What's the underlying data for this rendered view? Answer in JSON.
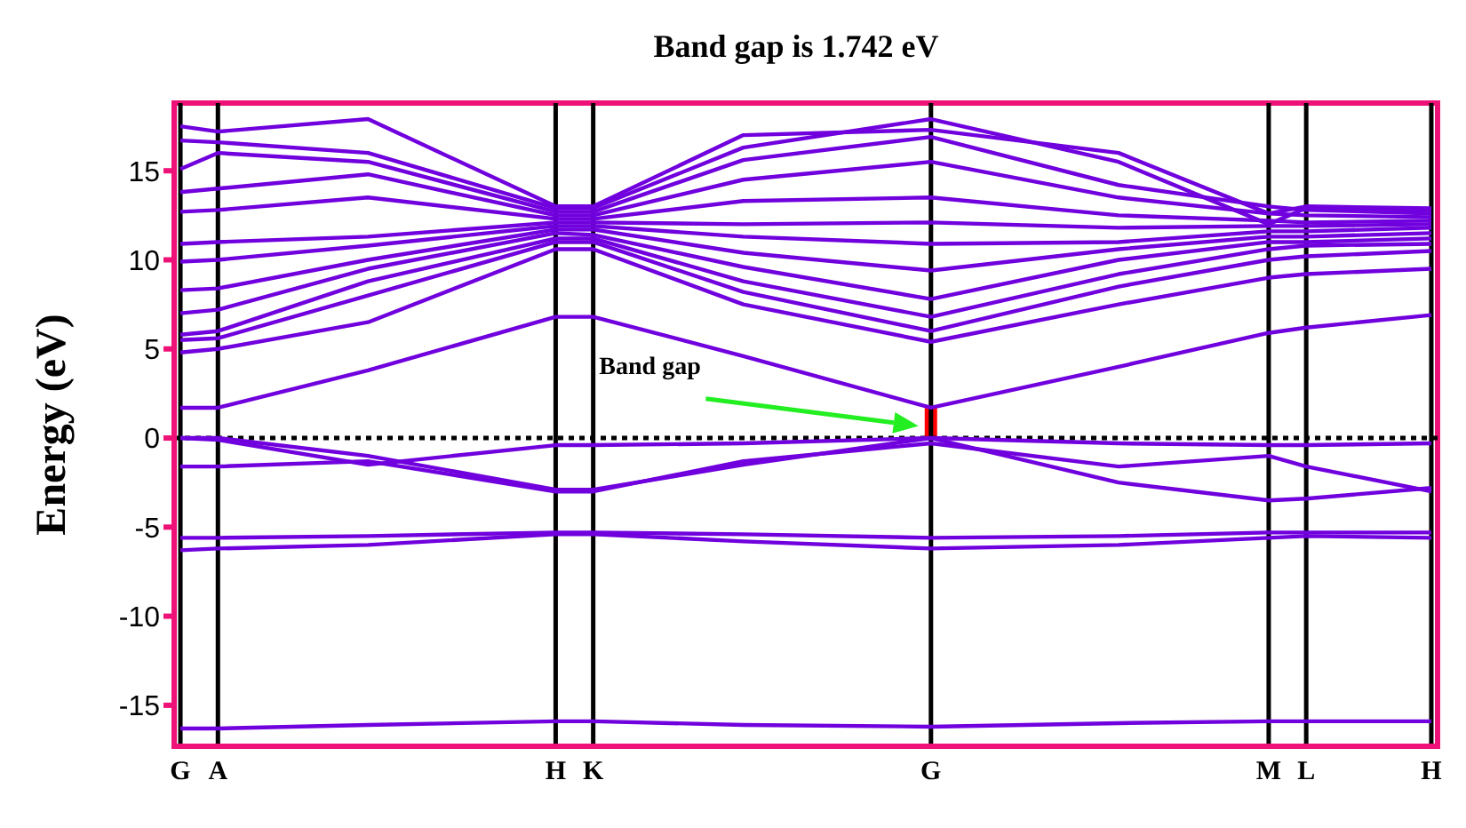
{
  "chart_data": {
    "type": "line",
    "title": "Band gap is 1.742 eV",
    "ylabel": "Energy (eV)",
    "categories": [
      "G",
      null,
      null,
      "A",
      null,
      null,
      null,
      null,
      null,
      null,
      null,
      null,
      null,
      null,
      null,
      null,
      null,
      null,
      null,
      null,
      null,
      null,
      null,
      null,
      null,
      null,
      null,
      null,
      null,
      null,
      "H",
      null,
      null,
      "K",
      null,
      null,
      null,
      null,
      null,
      null,
      null,
      null,
      null,
      null,
      null,
      null,
      null,
      null,
      null,
      null,
      null,
      null,
      null,
      null,
      null,
      null,
      null,
      null,
      null,
      null,
      "G",
      null,
      null,
      null,
      null,
      null,
      null,
      null,
      null,
      null,
      null,
      null,
      null,
      null,
      null,
      null,
      null,
      null,
      null,
      null,
      null,
      null,
      null,
      null,
      null,
      null,
      null,
      "M",
      null,
      null,
      "L",
      null,
      null,
      null,
      null,
      null,
      null,
      null,
      null,
      null,
      "H"
    ],
    "ylim": [
      -17.3,
      18.8
    ],
    "yticks": [
      -15,
      -10,
      -5,
      0,
      5,
      10,
      15
    ],
    "marker": "none",
    "line_style": "solid",
    "grid": "x",
    "series": [
      {
        "color": "#7000dd",
        "values": [
          -16.3,
          null,
          null,
          -16.3,
          null,
          null,
          null,
          null,
          null,
          null,
          null,
          null,
          null,
          null,
          null,
          -16.1,
          null,
          null,
          null,
          null,
          null,
          null,
          null,
          null,
          null,
          null,
          null,
          null,
          null,
          null,
          -15.9,
          null,
          null,
          -15.9,
          null,
          null,
          null,
          null,
          null,
          null,
          null,
          null,
          null,
          null,
          null,
          -16.1,
          null,
          null,
          null,
          null,
          null,
          null,
          null,
          null,
          null,
          null,
          null,
          null,
          null,
          null,
          -16.2,
          null,
          null,
          null,
          null,
          null,
          null,
          null,
          null,
          null,
          null,
          null,
          null,
          null,
          null,
          -16.0,
          null,
          null,
          null,
          null,
          null,
          null,
          null,
          null,
          null,
          null,
          null,
          -15.9,
          null,
          null,
          -15.9,
          null,
          null,
          null,
          null,
          null,
          null,
          null,
          null,
          null,
          -15.9
        ]
      },
      {
        "color": "#7000dd",
        "values": [
          -6.3,
          null,
          null,
          -6.2,
          null,
          null,
          null,
          null,
          null,
          null,
          null,
          null,
          null,
          null,
          null,
          -6.0,
          null,
          null,
          null,
          null,
          null,
          null,
          null,
          null,
          null,
          null,
          null,
          null,
          null,
          null,
          -5.4,
          null,
          null,
          -5.4,
          null,
          null,
          null,
          null,
          null,
          null,
          null,
          null,
          null,
          null,
          null,
          -5.8,
          null,
          null,
          null,
          null,
          null,
          null,
          null,
          null,
          null,
          null,
          null,
          null,
          null,
          null,
          -6.2,
          null,
          null,
          null,
          null,
          null,
          null,
          null,
          null,
          null,
          null,
          null,
          null,
          null,
          null,
          -6.0,
          null,
          null,
          null,
          null,
          null,
          null,
          null,
          null,
          null,
          null,
          null,
          -5.6,
          null,
          null,
          -5.5,
          null,
          null,
          null,
          null,
          null,
          null,
          null,
          null,
          null,
          -5.6
        ]
      },
      {
        "color": "#7000dd",
        "values": [
          -5.6,
          null,
          null,
          -5.6,
          null,
          null,
          null,
          null,
          null,
          null,
          null,
          null,
          null,
          null,
          null,
          -5.5,
          null,
          null,
          null,
          null,
          null,
          null,
          null,
          null,
          null,
          null,
          null,
          null,
          null,
          null,
          -5.3,
          null,
          null,
          -5.3,
          null,
          null,
          null,
          null,
          null,
          null,
          null,
          null,
          null,
          null,
          null,
          -5.4,
          null,
          null,
          null,
          null,
          null,
          null,
          null,
          null,
          null,
          null,
          null,
          null,
          null,
          null,
          -5.6,
          null,
          null,
          null,
          null,
          null,
          null,
          null,
          null,
          null,
          null,
          null,
          null,
          null,
          null,
          -5.5,
          null,
          null,
          null,
          null,
          null,
          null,
          null,
          null,
          null,
          null,
          null,
          -5.3,
          null,
          null,
          -5.3,
          null,
          null,
          null,
          null,
          null,
          null,
          null,
          null,
          null,
          -5.3
        ]
      },
      {
        "color": "#7000dd",
        "values": [
          -1.6,
          null,
          null,
          -1.6,
          null,
          null,
          null,
          null,
          null,
          null,
          null,
          null,
          null,
          null,
          null,
          -1.3,
          null,
          null,
          null,
          null,
          null,
          null,
          null,
          null,
          null,
          null,
          null,
          null,
          null,
          null,
          -3.0,
          null,
          null,
          -3.0,
          null,
          null,
          null,
          null,
          null,
          null,
          null,
          null,
          null,
          null,
          null,
          -1.3,
          null,
          null,
          null,
          null,
          null,
          null,
          null,
          null,
          null,
          null,
          null,
          null,
          null,
          null,
          -0.3,
          null,
          null,
          null,
          null,
          null,
          null,
          null,
          null,
          null,
          null,
          null,
          null,
          null,
          null,
          -1.6,
          null,
          null,
          null,
          null,
          null,
          null,
          null,
          null,
          null,
          null,
          null,
          -1.0,
          null,
          null,
          -1.6,
          null,
          null,
          null,
          null,
          null,
          null,
          null,
          null,
          null,
          -3.0
        ]
      },
      {
        "color": "#7000dd",
        "values": [
          0,
          null,
          null,
          -0.1,
          null,
          null,
          null,
          null,
          null,
          null,
          null,
          null,
          null,
          null,
          null,
          -1.5,
          null,
          null,
          null,
          null,
          null,
          null,
          null,
          null,
          null,
          null,
          null,
          null,
          null,
          null,
          -0.4,
          null,
          null,
          -0.4,
          null,
          null,
          null,
          null,
          null,
          null,
          null,
          null,
          null,
          null,
          null,
          -0.3,
          null,
          null,
          null,
          null,
          null,
          null,
          null,
          null,
          null,
          null,
          null,
          null,
          null,
          null,
          0,
          null,
          null,
          null,
          null,
          null,
          null,
          null,
          null,
          null,
          null,
          null,
          null,
          null,
          null,
          -0.3,
          null,
          null,
          null,
          null,
          null,
          null,
          null,
          null,
          null,
          null,
          null,
          -0.4,
          null,
          null,
          -0.4,
          null,
          null,
          null,
          null,
          null,
          null,
          null,
          null,
          null,
          -0.3
        ]
      },
      {
        "color": "#7000dd",
        "values": [
          0,
          null,
          null,
          0,
          null,
          null,
          null,
          null,
          null,
          null,
          null,
          null,
          null,
          null,
          null,
          -1.0,
          null,
          null,
          null,
          null,
          null,
          null,
          null,
          null,
          null,
          null,
          null,
          null,
          null,
          null,
          -2.9,
          null,
          null,
          -2.9,
          null,
          null,
          null,
          null,
          null,
          null,
          null,
          null,
          null,
          null,
          null,
          -1.5,
          null,
          null,
          null,
          null,
          null,
          null,
          null,
          null,
          null,
          null,
          null,
          null,
          null,
          null,
          0,
          null,
          null,
          null,
          null,
          null,
          null,
          null,
          null,
          null,
          null,
          null,
          null,
          null,
          null,
          -2.5,
          null,
          null,
          null,
          null,
          null,
          null,
          null,
          null,
          null,
          null,
          null,
          -3.5,
          null,
          null,
          -3.4,
          null,
          null,
          null,
          null,
          null,
          null,
          null,
          null,
          null,
          -2.8
        ]
      },
      {
        "color": "#7000dd",
        "values": [
          1.7,
          null,
          null,
          1.7,
          null,
          null,
          null,
          null,
          null,
          null,
          null,
          null,
          null,
          null,
          null,
          3.8,
          null,
          null,
          null,
          null,
          null,
          null,
          null,
          null,
          null,
          null,
          null,
          null,
          null,
          null,
          6.8,
          null,
          null,
          6.8,
          null,
          null,
          null,
          null,
          null,
          null,
          null,
          null,
          null,
          null,
          null,
          4.6,
          null,
          null,
          null,
          null,
          null,
          null,
          null,
          null,
          null,
          null,
          null,
          null,
          null,
          null,
          1.7,
          null,
          null,
          null,
          null,
          null,
          null,
          null,
          null,
          null,
          null,
          null,
          null,
          null,
          null,
          4.0,
          null,
          null,
          null,
          null,
          null,
          null,
          null,
          null,
          null,
          null,
          null,
          5.9,
          null,
          null,
          6.2,
          null,
          null,
          null,
          null,
          null,
          null,
          null,
          null,
          null,
          6.9
        ]
      },
      {
        "color": "#7000dd",
        "values": [
          4.8,
          null,
          null,
          5.0,
          null,
          null,
          null,
          null,
          null,
          null,
          null,
          null,
          null,
          null,
          null,
          6.5,
          null,
          null,
          null,
          null,
          null,
          null,
          null,
          null,
          null,
          null,
          null,
          null,
          null,
          null,
          10.6,
          null,
          null,
          10.6,
          null,
          null,
          null,
          null,
          null,
          null,
          null,
          null,
          null,
          null,
          null,
          7.5,
          null,
          null,
          null,
          null,
          null,
          null,
          null,
          null,
          null,
          null,
          null,
          null,
          null,
          null,
          5.4,
          null,
          null,
          null,
          null,
          null,
          null,
          null,
          null,
          null,
          null,
          null,
          null,
          null,
          null,
          7.5,
          null,
          null,
          null,
          null,
          null,
          null,
          null,
          null,
          null,
          null,
          null,
          9.0,
          null,
          null,
          9.2,
          null,
          null,
          null,
          null,
          null,
          null,
          null,
          null,
          null,
          9.5
        ]
      },
      {
        "color": "#7000dd",
        "values": [
          5.5,
          null,
          null,
          5.6,
          null,
          null,
          null,
          null,
          null,
          null,
          null,
          null,
          null,
          null,
          null,
          8.0,
          null,
          null,
          null,
          null,
          null,
          null,
          null,
          null,
          null,
          null,
          null,
          null,
          null,
          null,
          11.0,
          null,
          null,
          11.0,
          null,
          null,
          null,
          null,
          null,
          null,
          null,
          null,
          null,
          null,
          null,
          8.2,
          null,
          null,
          null,
          null,
          null,
          null,
          null,
          null,
          null,
          null,
          null,
          null,
          null,
          null,
          6.0,
          null,
          null,
          null,
          null,
          null,
          null,
          null,
          null,
          null,
          null,
          null,
          null,
          null,
          null,
          8.5,
          null,
          null,
          null,
          null,
          null,
          null,
          null,
          null,
          null,
          null,
          null,
          10.0,
          null,
          null,
          10.2,
          null,
          null,
          null,
          null,
          null,
          null,
          null,
          null,
          null,
          10.5
        ]
      },
      {
        "color": "#7000dd",
        "values": [
          5.8,
          null,
          null,
          6.0,
          null,
          null,
          null,
          null,
          null,
          null,
          null,
          null,
          null,
          null,
          null,
          8.8,
          null,
          null,
          null,
          null,
          null,
          null,
          null,
          null,
          null,
          null,
          null,
          null,
          null,
          null,
          11.2,
          null,
          null,
          11.2,
          null,
          null,
          null,
          null,
          null,
          null,
          null,
          null,
          null,
          null,
          null,
          8.8,
          null,
          null,
          null,
          null,
          null,
          null,
          null,
          null,
          null,
          null,
          null,
          null,
          null,
          null,
          6.8,
          null,
          null,
          null,
          null,
          null,
          null,
          null,
          null,
          null,
          null,
          null,
          null,
          null,
          null,
          9.2,
          null,
          null,
          null,
          null,
          null,
          null,
          null,
          null,
          null,
          null,
          null,
          10.6,
          null,
          null,
          10.8,
          null,
          null,
          null,
          null,
          null,
          null,
          null,
          null,
          null,
          10.9
        ]
      },
      {
        "color": "#7000dd",
        "values": [
          7.0,
          null,
          null,
          7.2,
          null,
          null,
          null,
          null,
          null,
          null,
          null,
          null,
          null,
          null,
          null,
          9.5,
          null,
          null,
          null,
          null,
          null,
          null,
          null,
          null,
          null,
          null,
          null,
          null,
          null,
          null,
          11.5,
          null,
          null,
          11.4,
          null,
          null,
          null,
          null,
          null,
          null,
          null,
          null,
          null,
          null,
          null,
          9.6,
          null,
          null,
          null,
          null,
          null,
          null,
          null,
          null,
          null,
          null,
          null,
          null,
          null,
          null,
          7.8,
          null,
          null,
          null,
          null,
          null,
          null,
          null,
          null,
          null,
          null,
          null,
          null,
          null,
          null,
          10.0,
          null,
          null,
          null,
          null,
          null,
          null,
          null,
          null,
          null,
          null,
          null,
          11.0,
          null,
          null,
          11.0,
          null,
          null,
          null,
          null,
          null,
          null,
          null,
          null,
          null,
          11.2
        ]
      },
      {
        "color": "#7000dd",
        "values": [
          8.3,
          null,
          null,
          8.4,
          null,
          null,
          null,
          null,
          null,
          null,
          null,
          null,
          null,
          null,
          null,
          10.0,
          null,
          null,
          null,
          null,
          null,
          null,
          null,
          null,
          null,
          null,
          null,
          null,
          null,
          null,
          11.7,
          null,
          null,
          11.7,
          null,
          null,
          null,
          null,
          null,
          null,
          null,
          null,
          null,
          null,
          null,
          10.4,
          null,
          null,
          null,
          null,
          null,
          null,
          null,
          null,
          null,
          null,
          null,
          null,
          null,
          null,
          9.4,
          null,
          null,
          null,
          null,
          null,
          null,
          null,
          null,
          null,
          null,
          null,
          null,
          null,
          null,
          10.6,
          null,
          null,
          null,
          null,
          null,
          null,
          null,
          null,
          null,
          null,
          null,
          11.3,
          null,
          null,
          11.3,
          null,
          null,
          null,
          null,
          null,
          null,
          null,
          null,
          null,
          11.5
        ]
      },
      {
        "color": "#7000dd",
        "values": [
          9.9,
          null,
          null,
          10.0,
          null,
          null,
          null,
          null,
          null,
          null,
          null,
          null,
          null,
          null,
          null,
          10.8,
          null,
          null,
          null,
          null,
          null,
          null,
          null,
          null,
          null,
          null,
          null,
          null,
          null,
          null,
          11.9,
          null,
          null,
          11.9,
          null,
          null,
          null,
          null,
          null,
          null,
          null,
          null,
          null,
          null,
          null,
          11.3,
          null,
          null,
          null,
          null,
          null,
          null,
          null,
          null,
          null,
          null,
          null,
          null,
          null,
          null,
          10.9,
          null,
          null,
          null,
          null,
          null,
          null,
          null,
          null,
          null,
          null,
          null,
          null,
          null,
          null,
          11.0,
          null,
          null,
          null,
          null,
          null,
          null,
          null,
          null,
          null,
          null,
          null,
          11.6,
          null,
          null,
          11.6,
          null,
          null,
          null,
          null,
          null,
          null,
          null,
          null,
          null,
          11.8
        ]
      },
      {
        "color": "#7000dd",
        "values": [
          10.9,
          null,
          null,
          11.0,
          null,
          null,
          null,
          null,
          null,
          null,
          null,
          null,
          null,
          null,
          null,
          11.3,
          null,
          null,
          null,
          null,
          null,
          null,
          null,
          null,
          null,
          null,
          null,
          null,
          null,
          null,
          12.1,
          null,
          null,
          12.1,
          null,
          null,
          null,
          null,
          null,
          null,
          null,
          null,
          null,
          null,
          null,
          12.0,
          null,
          null,
          null,
          null,
          null,
          null,
          null,
          null,
          null,
          null,
          null,
          null,
          null,
          null,
          12.1,
          null,
          null,
          null,
          null,
          null,
          null,
          null,
          null,
          null,
          null,
          null,
          null,
          null,
          null,
          11.8,
          null,
          null,
          null,
          null,
          null,
          null,
          null,
          null,
          null,
          null,
          null,
          11.9,
          null,
          null,
          11.9,
          null,
          null,
          null,
          null,
          null,
          null,
          null,
          null,
          null,
          12.0
        ]
      },
      {
        "color": "#7000dd",
        "values": [
          12.7,
          null,
          null,
          12.8,
          null,
          null,
          null,
          null,
          null,
          null,
          null,
          null,
          null,
          null,
          null,
          13.5,
          null,
          null,
          null,
          null,
          null,
          null,
          null,
          null,
          null,
          null,
          null,
          null,
          null,
          null,
          12.3,
          null,
          null,
          12.3,
          null,
          null,
          null,
          null,
          null,
          null,
          null,
          null,
          null,
          null,
          null,
          13.3,
          null,
          null,
          null,
          null,
          null,
          null,
          null,
          null,
          null,
          null,
          null,
          null,
          null,
          null,
          13.5,
          null,
          null,
          null,
          null,
          null,
          null,
          null,
          null,
          null,
          null,
          null,
          null,
          null,
          null,
          12.5,
          null,
          null,
          null,
          null,
          null,
          null,
          null,
          null,
          null,
          null,
          null,
          12.2,
          null,
          null,
          12.1,
          null,
          null,
          null,
          null,
          null,
          null,
          null,
          null,
          null,
          12.2
        ]
      },
      {
        "color": "#7000dd",
        "values": [
          13.8,
          null,
          null,
          14.0,
          null,
          null,
          null,
          null,
          null,
          null,
          null,
          null,
          null,
          null,
          null,
          14.8,
          null,
          null,
          null,
          null,
          null,
          null,
          null,
          null,
          null,
          null,
          null,
          null,
          null,
          null,
          12.5,
          null,
          null,
          12.5,
          null,
          null,
          null,
          null,
          null,
          null,
          null,
          null,
          null,
          null,
          null,
          14.5,
          null,
          null,
          null,
          null,
          null,
          null,
          null,
          null,
          null,
          null,
          null,
          null,
          null,
          null,
          15.5,
          null,
          null,
          null,
          null,
          null,
          null,
          null,
          null,
          null,
          null,
          null,
          null,
          null,
          null,
          13.5,
          null,
          null,
          null,
          null,
          null,
          null,
          null,
          null,
          null,
          null,
          null,
          12.6,
          null,
          null,
          12.5,
          null,
          null,
          null,
          null,
          null,
          null,
          null,
          null,
          null,
          12.4
        ]
      },
      {
        "color": "#7000dd",
        "values": [
          15.1,
          null,
          null,
          16.0,
          null,
          null,
          null,
          null,
          null,
          null,
          null,
          null,
          null,
          null,
          null,
          15.5,
          null,
          null,
          null,
          null,
          null,
          null,
          null,
          null,
          null,
          null,
          null,
          null,
          null,
          null,
          12.7,
          null,
          null,
          12.7,
          null,
          null,
          null,
          null,
          null,
          null,
          null,
          null,
          null,
          null,
          null,
          15.6,
          null,
          null,
          null,
          null,
          null,
          null,
          null,
          null,
          null,
          null,
          null,
          null,
          null,
          null,
          16.9,
          null,
          null,
          null,
          null,
          null,
          null,
          null,
          null,
          null,
          null,
          null,
          null,
          null,
          null,
          14.2,
          null,
          null,
          null,
          null,
          null,
          null,
          null,
          null,
          null,
          null,
          null,
          13.0,
          null,
          null,
          12.8,
          null,
          null,
          null,
          null,
          null,
          null,
          null,
          null,
          null,
          12.6
        ]
      },
      {
        "color": "#7000dd",
        "values": [
          16.7,
          null,
          null,
          16.6,
          null,
          null,
          null,
          null,
          null,
          null,
          null,
          null,
          null,
          null,
          null,
          16.0,
          null,
          null,
          null,
          null,
          null,
          null,
          null,
          null,
          null,
          null,
          null,
          null,
          null,
          null,
          12.9,
          null,
          null,
          12.9,
          null,
          null,
          null,
          null,
          null,
          null,
          null,
          null,
          null,
          null,
          null,
          16.3,
          null,
          null,
          null,
          null,
          null,
          null,
          null,
          null,
          null,
          null,
          null,
          null,
          null,
          null,
          17.9,
          null,
          null,
          null,
          null,
          null,
          null,
          null,
          null,
          null,
          null,
          null,
          null,
          null,
          null,
          15.5,
          null,
          null,
          null,
          null,
          null,
          null,
          null,
          null,
          null,
          null,
          null,
          12.0,
          null,
          null,
          12.9,
          null,
          null,
          null,
          null,
          null,
          null,
          null,
          null,
          null,
          12.8
        ]
      },
      {
        "color": "#7000dd",
        "values": [
          17.5,
          null,
          null,
          17.2,
          null,
          null,
          null,
          null,
          null,
          null,
          null,
          null,
          null,
          null,
          null,
          17.9,
          null,
          null,
          null,
          null,
          null,
          null,
          null,
          null,
          null,
          null,
          null,
          null,
          null,
          null,
          13.0,
          null,
          null,
          13.0,
          null,
          null,
          null,
          null,
          null,
          null,
          null,
          null,
          null,
          null,
          null,
          17.0,
          null,
          null,
          null,
          null,
          null,
          null,
          null,
          null,
          null,
          null,
          null,
          null,
          null,
          null,
          17.3,
          null,
          null,
          null,
          null,
          null,
          null,
          null,
          null,
          null,
          null,
          null,
          null,
          null,
          null,
          16.0,
          null,
          null,
          null,
          null,
          null,
          null,
          null,
          null,
          null,
          null,
          null,
          12.6,
          null,
          null,
          13.0,
          null,
          null,
          null,
          null,
          null,
          null,
          null,
          null,
          null,
          12.9
        ]
      },
      {
        "type": "bar",
        "color": "#ff0000",
        "values": [
          null,
          null,
          null,
          null,
          null,
          null,
          null,
          null,
          null,
          null,
          null,
          null,
          null,
          null,
          null,
          null,
          null,
          null,
          null,
          null,
          null,
          null,
          null,
          null,
          null,
          null,
          null,
          null,
          null,
          null,
          null,
          null,
          null,
          null,
          null,
          null,
          null,
          null,
          null,
          null,
          null,
          null,
          null,
          null,
          null,
          null,
          null,
          null,
          null,
          null,
          null,
          null,
          null,
          null,
          null,
          null,
          null,
          null,
          null,
          null,
          1.7,
          null,
          null,
          null,
          null,
          null,
          null,
          null,
          null,
          null,
          null,
          null,
          null,
          null,
          null,
          null,
          null,
          null,
          null,
          null,
          null,
          null,
          null,
          null,
          null,
          null,
          null,
          null,
          null,
          null,
          null,
          null,
          null,
          null,
          null,
          null,
          null,
          null,
          null,
          null,
          null
        ]
      }
    ],
    "ref_lines": [
      {
        "axis": "y",
        "value": 0,
        "color": "#000000",
        "line_style": "dotted"
      }
    ],
    "annotations": [
      "Band gap"
    ]
  }
}
